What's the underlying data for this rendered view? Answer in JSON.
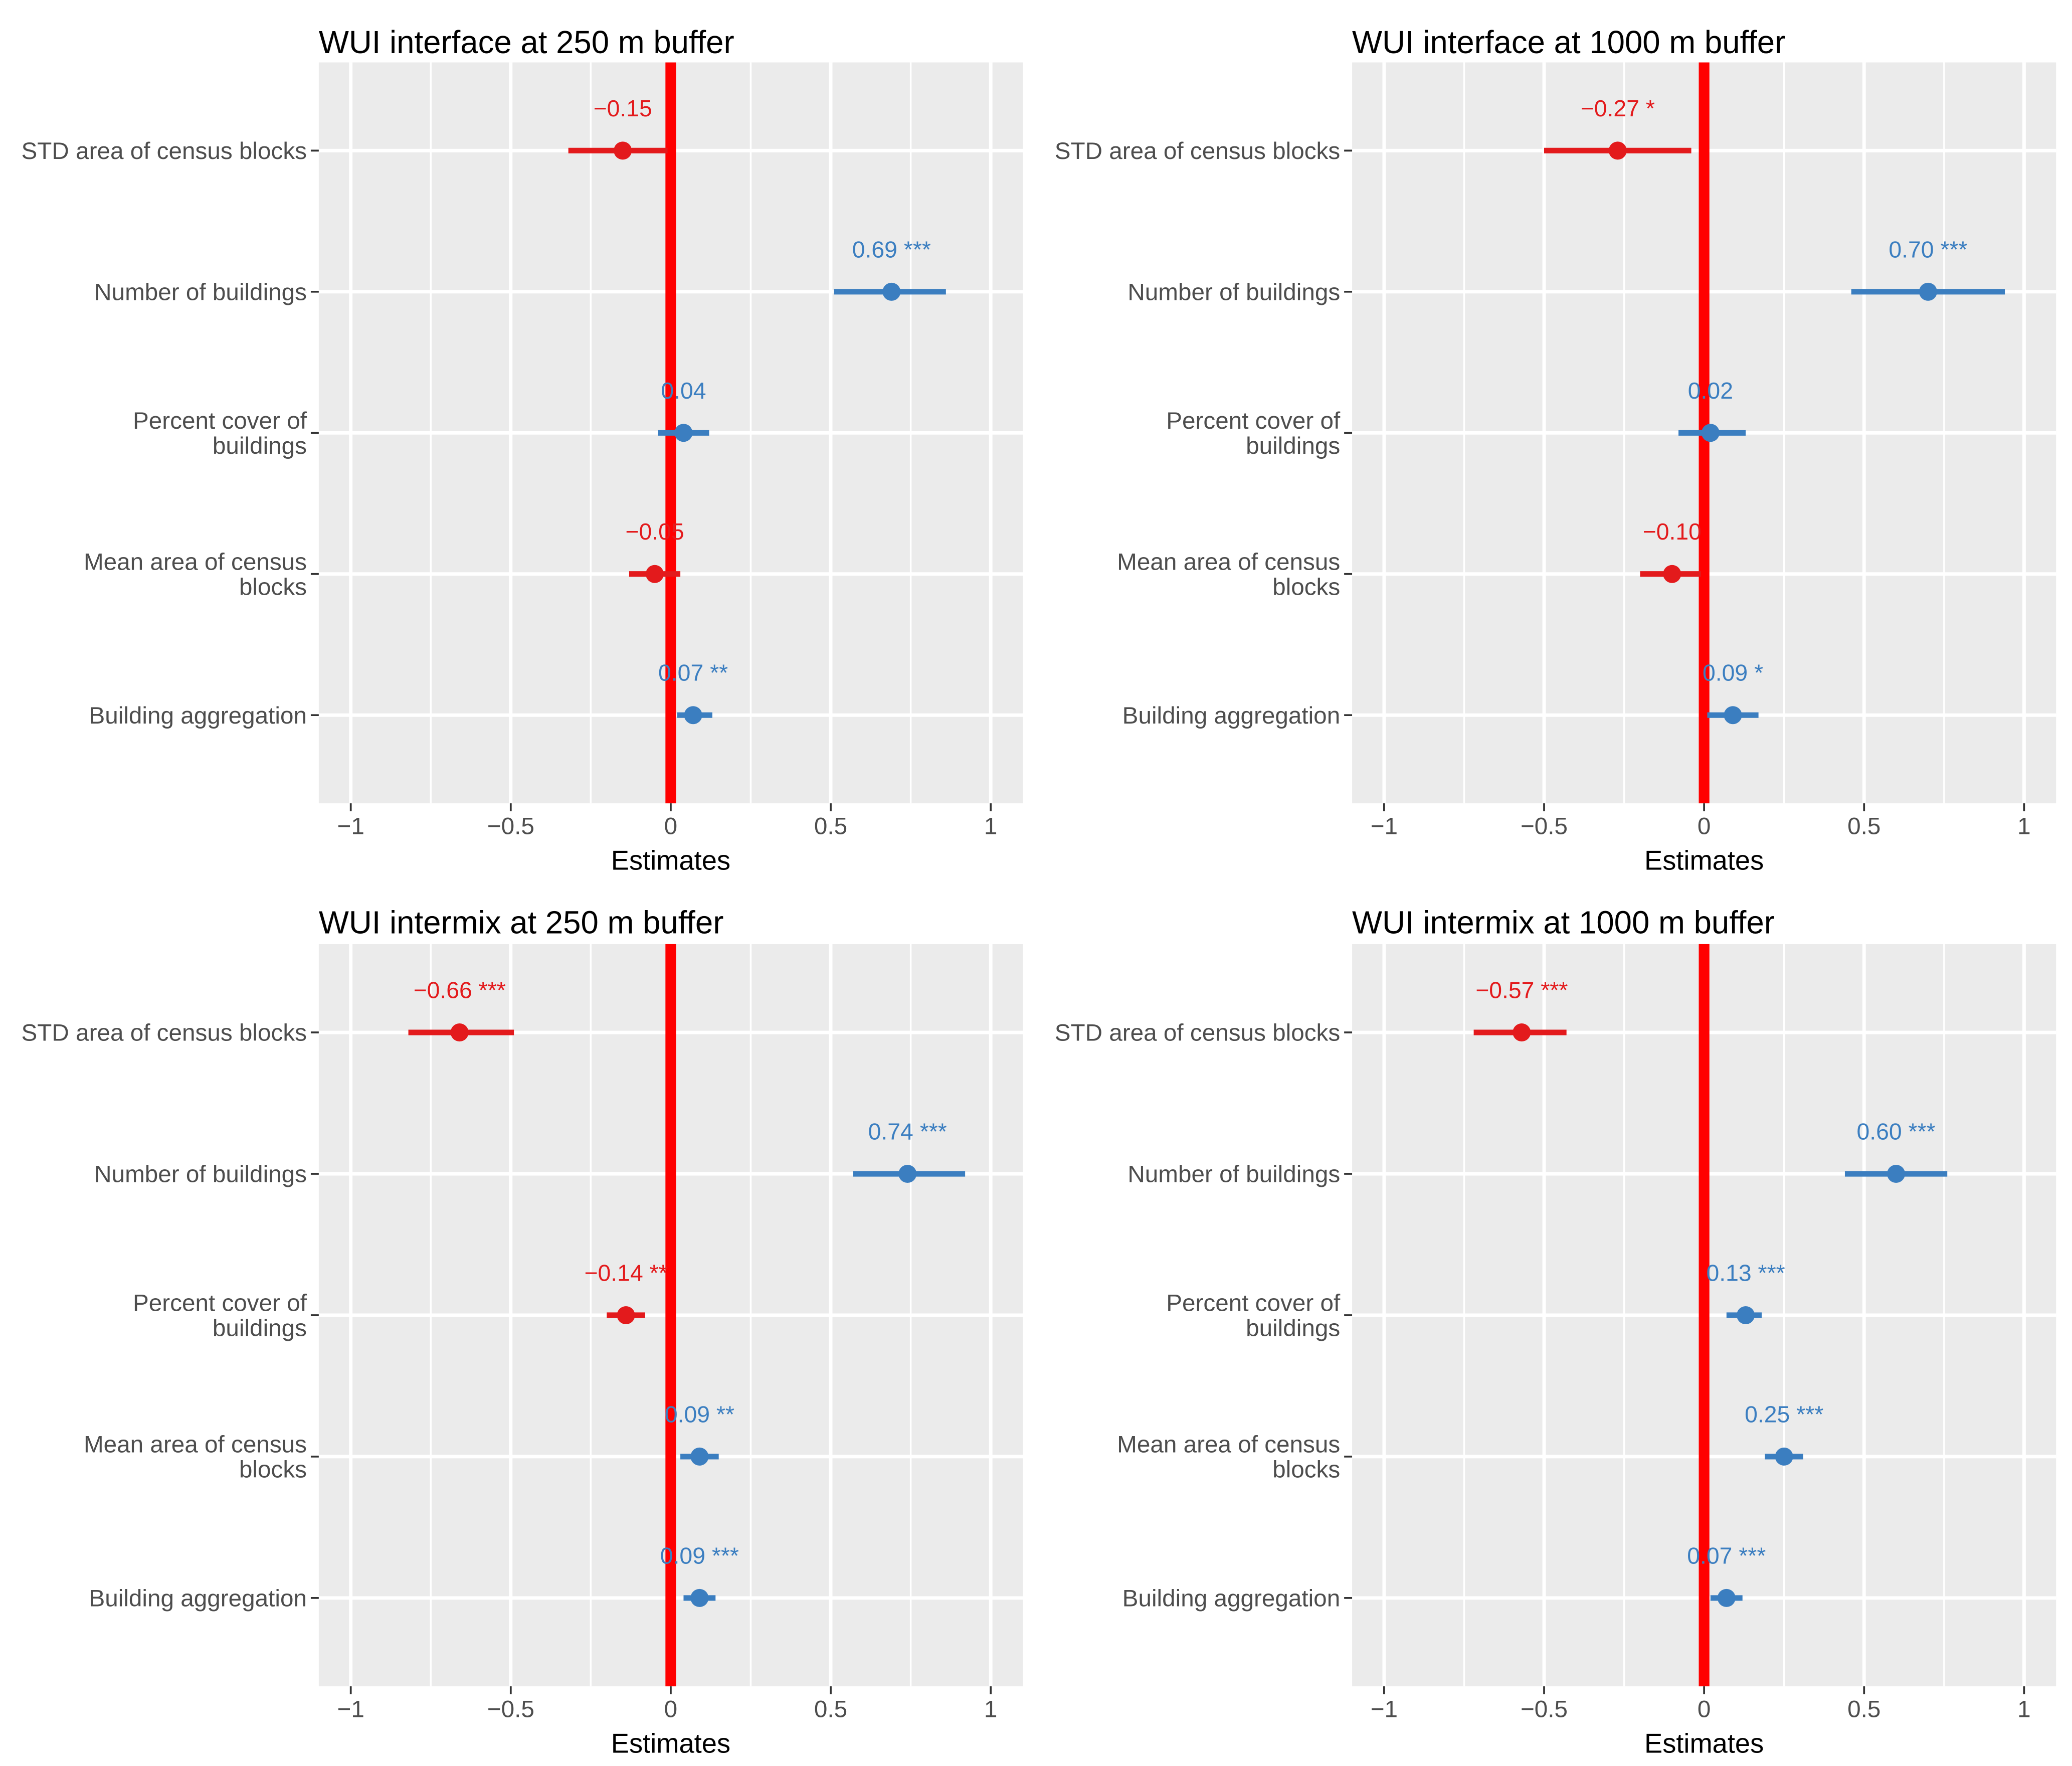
{
  "colors": {
    "positive": "#3b7ec0",
    "negative": "#e31a1c",
    "zero_line": "#ff0000",
    "panel_background": "#ebebeb",
    "gridline": "#ffffff"
  },
  "chart_data": [
    {
      "type": "forest",
      "title": "WUI interface at 250 m buffer",
      "xlabel": "Estimates",
      "xlim": [
        -1.1,
        1.1
      ],
      "xticks": [
        -1,
        -0.5,
        0,
        0.5,
        1
      ],
      "xtick_labels": [
        "−1",
        "−0.5",
        "0",
        "0.5",
        "1"
      ],
      "categories": [
        "STD area of census blocks",
        "Number of buildings",
        "Percent cover of buildings",
        "Mean area of census blocks",
        "Building aggregation"
      ],
      "estimates": [
        -0.15,
        0.69,
        0.04,
        -0.05,
        0.07
      ],
      "ci_low": [
        -0.32,
        0.51,
        -0.04,
        -0.13,
        0.02
      ],
      "ci_high": [
        -0.01,
        0.86,
        0.12,
        0.03,
        0.13
      ],
      "labels": [
        "−0.15",
        "0.69 ***",
        "0.04",
        "−0.05",
        "0.07 **"
      ],
      "grid": true
    },
    {
      "type": "forest",
      "title": "WUI interface at 1000 m buffer",
      "xlabel": "Estimates",
      "xlim": [
        -1.1,
        1.1
      ],
      "xticks": [
        -1,
        -0.5,
        0,
        0.5,
        1
      ],
      "xtick_labels": [
        "−1",
        "−0.5",
        "0",
        "0.5",
        "1"
      ],
      "categories": [
        "STD area of census blocks",
        "Number of buildings",
        "Percent cover of buildings",
        "Mean area of census blocks",
        "Building aggregation"
      ],
      "estimates": [
        -0.27,
        0.7,
        0.02,
        -0.1,
        0.09
      ],
      "ci_low": [
        -0.5,
        0.46,
        -0.08,
        -0.2,
        0.01
      ],
      "ci_high": [
        -0.04,
        0.94,
        0.13,
        -0.01,
        0.17
      ],
      "labels": [
        "−0.27 *",
        "0.70 ***",
        "0.02",
        "−0.10",
        "0.09 *"
      ],
      "grid": true
    },
    {
      "type": "forest",
      "title": "WUI intermix at 250 m buffer",
      "xlabel": "Estimates",
      "xlim": [
        -1.1,
        1.1
      ],
      "xticks": [
        -1,
        -0.5,
        0,
        0.5,
        1
      ],
      "xtick_labels": [
        "−1",
        "−0.5",
        "0",
        "0.5",
        "1"
      ],
      "categories": [
        "STD area of census blocks",
        "Number of buildings",
        "Percent cover of buildings",
        "Mean area of census blocks",
        "Building aggregation"
      ],
      "estimates": [
        -0.66,
        0.74,
        -0.14,
        0.09,
        0.09
      ],
      "ci_low": [
        -0.82,
        0.57,
        -0.2,
        0.03,
        0.04
      ],
      "ci_high": [
        -0.49,
        0.92,
        -0.08,
        0.15,
        0.14
      ],
      "labels": [
        "−0.66 ***",
        "0.74 ***",
        "−0.14 **",
        "0.09 **",
        "0.09 ***"
      ],
      "grid": true
    },
    {
      "type": "forest",
      "title": "WUI intermix at 1000 m buffer",
      "xlabel": "Estimates",
      "xlim": [
        -1.1,
        1.1
      ],
      "xticks": [
        -1,
        -0.5,
        0,
        0.5,
        1
      ],
      "xtick_labels": [
        "−1",
        "−0.5",
        "0",
        "0.5",
        "1"
      ],
      "categories": [
        "STD area of census blocks",
        "Number of buildings",
        "Percent cover of buildings",
        "Mean area of census blocks",
        "Building aggregation"
      ],
      "estimates": [
        -0.57,
        0.6,
        0.13,
        0.25,
        0.07
      ],
      "ci_low": [
        -0.72,
        0.44,
        0.07,
        0.19,
        0.02
      ],
      "ci_high": [
        -0.43,
        0.76,
        0.18,
        0.31,
        0.12
      ],
      "labels": [
        "−0.57 ***",
        "0.60 ***",
        "0.13 ***",
        "0.25 ***",
        "0.07 ***"
      ],
      "grid": true
    }
  ]
}
